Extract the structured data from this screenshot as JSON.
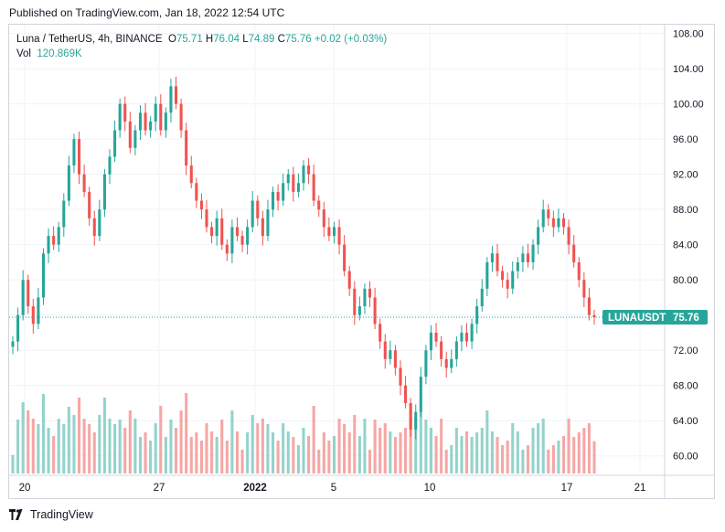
{
  "header": {
    "published": "Published on TradingView.com, Jan 18, 2022 12:54 UTC"
  },
  "legend": {
    "symbol": "Luna / TetherUS, 4h, BINANCE",
    "o_label": "O",
    "o": "75.71",
    "h_label": "H",
    "h": "76.04",
    "l_label": "L",
    "l": "74.89",
    "c_label": "C",
    "c": "75.76",
    "change": "+0.02 (+0.03%)",
    "vol_label": "Vol",
    "vol": "120.869K"
  },
  "price_tag": {
    "symbol": "LUNAUSDT",
    "value": "75.76"
  },
  "footer": {
    "brand": "TradingView"
  },
  "colors": {
    "up": "#26a69a",
    "down": "#ef5350",
    "vol_up": "#93d3cc",
    "vol_down": "#f5a7a5",
    "tag_bg": "#26a69a",
    "grid": "#f0f3fa"
  },
  "chart_data": {
    "type": "candlestick",
    "symbol": "LUNAUSDT",
    "interval": "4h",
    "y_ticks": [
      60,
      64,
      68,
      72,
      76,
      80,
      84,
      88,
      92,
      96,
      100,
      104,
      108
    ],
    "y_tick_labels": [
      "60.00",
      "64.00",
      "68.00",
      "72.00",
      "76.00",
      "80.00",
      "84.00",
      "88.00",
      "92.00",
      "96.00",
      "100.00",
      "104.00",
      "108.00"
    ],
    "ylim": [
      58,
      109
    ],
    "x_tick_labels": [
      "20",
      "27",
      "2022",
      "5",
      "10",
      "17",
      "21"
    ],
    "last_price": 75.76,
    "closes": [
      73.0,
      76.0,
      80.0,
      77.0,
      75.0,
      78.0,
      83.0,
      85.0,
      84.0,
      86.0,
      89.0,
      93.0,
      96.0,
      92.0,
      90.0,
      87.0,
      85.0,
      88.0,
      92.0,
      94.0,
      97.0,
      100.0,
      98.0,
      95.0,
      97.0,
      99.0,
      97.0,
      98.0,
      100.0,
      97.0,
      99.0,
      102.0,
      100.0,
      97.0,
      93.0,
      91.0,
      89.0,
      88.0,
      86.0,
      85.0,
      87.0,
      84.0,
      83.0,
      86.0,
      85.0,
      84.0,
      86.0,
      89.0,
      87.0,
      85.0,
      88.0,
      90.0,
      89.0,
      91.0,
      92.0,
      90.0,
      91.0,
      93.0,
      92.0,
      89.0,
      88.0,
      86.0,
      85.0,
      86.0,
      84.0,
      81.0,
      79.0,
      76.0,
      77.0,
      79.0,
      78.0,
      75.0,
      73.0,
      71.0,
      72.0,
      70.0,
      68.0,
      66.0,
      63.0,
      65.0,
      69.0,
      72.0,
      74.0,
      73.0,
      71.0,
      70.0,
      71.0,
      73.0,
      74.0,
      73.0,
      75.0,
      77.0,
      79.0,
      82.0,
      83.0,
      81.0,
      80.0,
      79.0,
      81.0,
      82.0,
      83.0,
      82.0,
      84.0,
      86.0,
      88.0,
      87.0,
      86.0,
      87.0,
      86.0,
      84.0,
      82.0,
      80.0,
      78.0,
      76.0,
      75.76
    ]
  }
}
